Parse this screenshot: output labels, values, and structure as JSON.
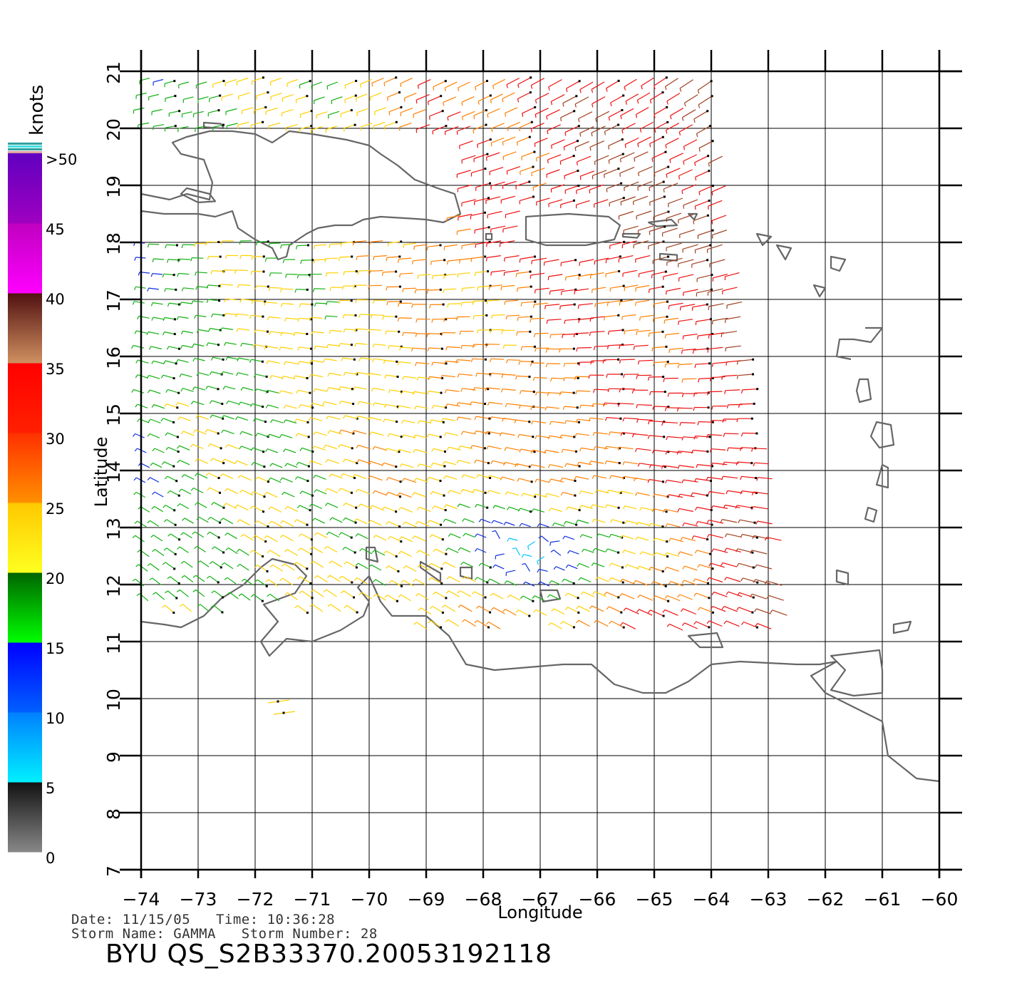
{
  "map": {
    "lon_range": [
      -74,
      -60
    ],
    "lat_range": [
      7,
      21
    ],
    "lon_ticks": [
      "−74",
      "−73",
      "−72",
      "−71",
      "−70",
      "−69",
      "−68",
      "−67",
      "−66",
      "−65",
      "−64",
      "−63",
      "−62",
      "−61",
      "−60"
    ],
    "lat_ticks": [
      "7",
      "8",
      "9",
      "10",
      "11",
      "12",
      "13",
      "14",
      "15",
      "16",
      "17",
      "18",
      "19",
      "20",
      "21"
    ],
    "xlabel": "Longitude",
    "ylabel": "Latitude",
    "grid": true
  },
  "legend": {
    "unit": "knots",
    "labels": [
      ">50",
      "45",
      "40",
      "35",
      "30",
      "25",
      "20",
      "15",
      "10",
      "5",
      "0"
    ],
    "bands": [
      {
        "from": 0,
        "to": 5,
        "top": "#111111",
        "bottom": "#888888"
      },
      {
        "from": 5,
        "to": 10,
        "top": "#0080ff",
        "bottom": "#00f0ff"
      },
      {
        "from": 10,
        "to": 15,
        "top": "#0000ff",
        "bottom": "#0060ff"
      },
      {
        "from": 15,
        "to": 20,
        "top": "#006400",
        "bottom": "#00ff00"
      },
      {
        "from": 20,
        "to": 25,
        "top": "#ffc800",
        "bottom": "#ffff20"
      },
      {
        "from": 25,
        "to": 30,
        "top": "#ff3000",
        "bottom": "#ff9000"
      },
      {
        "from": 30,
        "to": 35,
        "top": "#ff0000",
        "bottom": "#ff2000"
      },
      {
        "from": 35,
        "to": 40,
        "top": "#501010",
        "bottom": "#d09060"
      },
      {
        "from": 40,
        "to": 45,
        "top": "#c000c0",
        "bottom": "#ff00ff"
      },
      {
        "from": 45,
        "to": 50,
        "top": "#6000c0",
        "bottom": "#a000c0"
      }
    ],
    "top_stripes": [
      "#e0a0a0",
      "#30a0a0",
      "#40e0e0",
      "#30a0a0"
    ]
  },
  "info": {
    "date_line": "Date: 11/15/05   Time: 10:36:28",
    "storm_line": "Storm Name: GAMMA   Storm Number: 28",
    "title": "BYU  QS_S2B33370.20053192118"
  },
  "colors": {
    "coast": "#666666",
    "grid": "#000000",
    "wind_dot": "#000000"
  }
}
